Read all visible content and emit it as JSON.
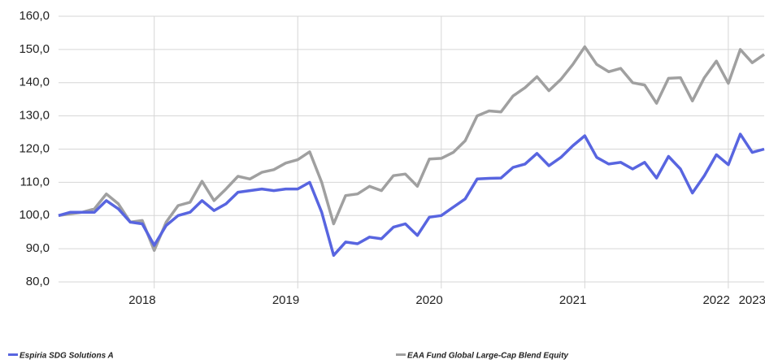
{
  "chart_data": {
    "type": "line",
    "categories": [
      null,
      null,
      null,
      null,
      null,
      null,
      null,
      "2018",
      null,
      null,
      null,
      null,
      null,
      null,
      null,
      null,
      null,
      null,
      null,
      "2019",
      null,
      null,
      null,
      null,
      null,
      null,
      null,
      null,
      null,
      null,
      null,
      "2020",
      null,
      null,
      null,
      null,
      null,
      null,
      null,
      null,
      null,
      null,
      null,
      "2021",
      null,
      null,
      null,
      null,
      null,
      null,
      null,
      null,
      null,
      null,
      null,
      "2022",
      null,
      null,
      "2023",
      null
    ],
    "series": [
      {
        "name": "Espiria SDG Solutions A",
        "color": "#5865e0",
        "values": [
          100,
          101,
          101,
          101,
          104.5,
          102,
          98,
          97.5,
          91,
          97,
          100,
          101,
          104.5,
          101.5,
          103.5,
          107,
          107.5,
          108,
          107.5,
          108,
          108,
          110,
          101,
          88,
          92,
          91.5,
          93.5,
          93,
          96.5,
          97.5,
          94,
          99.5,
          100,
          102.5,
          105,
          111,
          111.2,
          111.3,
          114.5,
          115.5,
          118.7,
          115,
          117.5,
          121,
          124,
          117.5,
          115.5,
          116,
          114,
          116,
          111.3,
          117.8,
          114,
          106.8,
          112,
          118.3,
          115.3,
          124.5,
          119,
          120
        ]
      },
      {
        "name": "EAA Fund Global Large-Cap Blend Equity",
        "color": "#a0a0a0",
        "values": [
          100,
          100.5,
          101,
          102,
          106.5,
          103.5,
          98,
          98.5,
          89.5,
          98,
          103,
          104,
          110.3,
          104.5,
          108,
          111.8,
          111,
          113,
          113.8,
          115.8,
          116.8,
          119.2,
          110,
          97.5,
          106,
          106.5,
          108.8,
          107.5,
          112,
          112.5,
          108.8,
          117,
          117.2,
          119,
          122.5,
          130,
          131.5,
          131.2,
          136,
          138.5,
          141.8,
          137.6,
          141,
          145.5,
          150.8,
          145.5,
          143.3,
          144.3,
          140,
          139.3,
          133.8,
          141.3,
          141.5,
          134.5,
          141.5,
          146.5,
          139.8,
          150,
          146,
          148.5
        ]
      }
    ],
    "ylim": [
      80,
      160
    ],
    "yticks": [
      {
        "value": 80,
        "label": "80,0"
      },
      {
        "value": 90,
        "label": "90,0"
      },
      {
        "value": 100,
        "label": "100,0"
      },
      {
        "value": 110,
        "label": "110,0"
      },
      {
        "value": 120,
        "label": "120,0"
      },
      {
        "value": 130,
        "label": "130,0"
      },
      {
        "value": 140,
        "label": "140,0"
      },
      {
        "value": 150,
        "label": "150,0"
      },
      {
        "value": 160,
        "label": "160,0"
      }
    ],
    "grid": true
  }
}
